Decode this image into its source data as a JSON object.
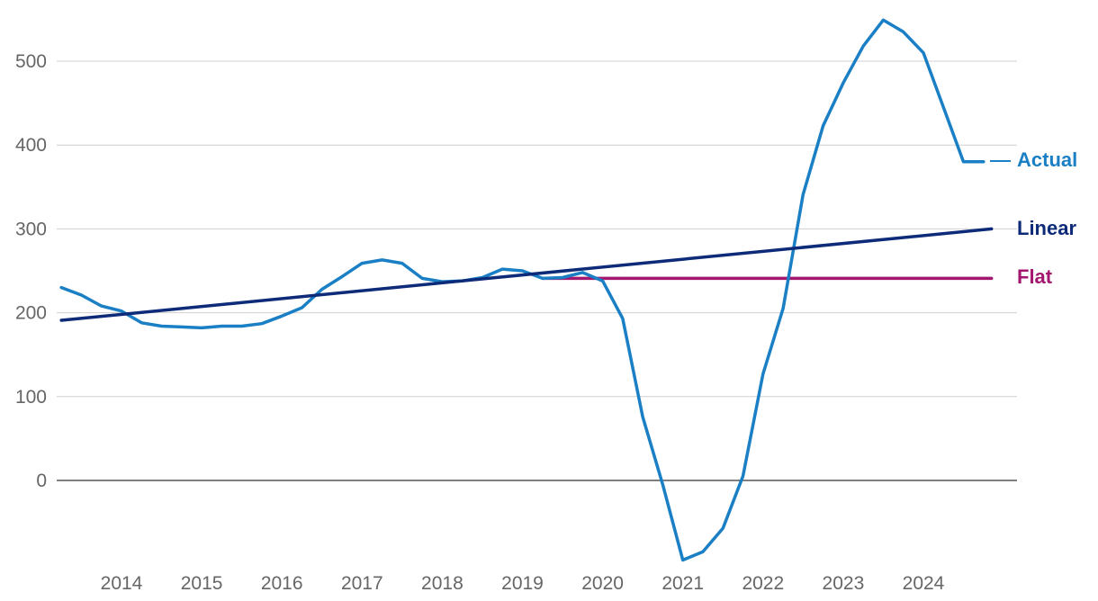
{
  "chart_data": {
    "type": "line",
    "title": "",
    "xlabel": "",
    "ylabel": "",
    "ylim": [
      -95,
      550
    ],
    "xlim": [
      2013.25,
      2025
    ],
    "y_ticks": [
      0,
      100,
      200,
      300,
      400,
      500
    ],
    "x_ticks": [
      "2014",
      "2015",
      "2016",
      "2017",
      "2018",
      "2019",
      "2020",
      "2021",
      "2022",
      "2023",
      "2024"
    ],
    "grid": "horizontal",
    "legend": "inline-right",
    "colors": {
      "Actual": "#1a7fc4",
      "Linear": "#0d2b78",
      "Flat": "#a3176e",
      "grid": "#d0d0d0",
      "zero": "#555555"
    },
    "series": [
      {
        "name": "Actual",
        "x": [
          2013.25,
          2013.5,
          2013.75,
          2014.0,
          2014.25,
          2014.5,
          2014.75,
          2015.0,
          2015.25,
          2015.5,
          2015.75,
          2016.0,
          2016.25,
          2016.5,
          2016.75,
          2017.0,
          2017.25,
          2017.5,
          2017.75,
          2018.0,
          2018.25,
          2018.5,
          2018.75,
          2019.0,
          2019.25,
          2019.5,
          2019.75,
          2020.0,
          2020.25,
          2020.5,
          2020.75,
          2021.0,
          2021.25,
          2021.5,
          2021.75,
          2022.0,
          2022.25,
          2022.5,
          2022.75,
          2023.0,
          2023.25,
          2023.5,
          2023.75,
          2024.0,
          2024.25,
          2024.5,
          2024.75
        ],
        "values": [
          230,
          221,
          208,
          202,
          188,
          184,
          183,
          182,
          184,
          184,
          187,
          196,
          206,
          228,
          243,
          259,
          263,
          259,
          241,
          237,
          238,
          242,
          252,
          250,
          241,
          242,
          248,
          238,
          193,
          76,
          -5,
          -95,
          -85,
          -57,
          5,
          127,
          205,
          341,
          423,
          474,
          518,
          549,
          535,
          510,
          445,
          380,
          380
        ]
      },
      {
        "name": "Linear",
        "x": [
          2013.25,
          2024.85
        ],
        "values": [
          191,
          300
        ]
      },
      {
        "name": "Flat",
        "x": [
          2019.25,
          2024.85
        ],
        "values": [
          241,
          241
        ]
      }
    ],
    "labels": {
      "Actual": "Actual",
      "Linear": "Linear",
      "Flat": "Flat"
    }
  }
}
